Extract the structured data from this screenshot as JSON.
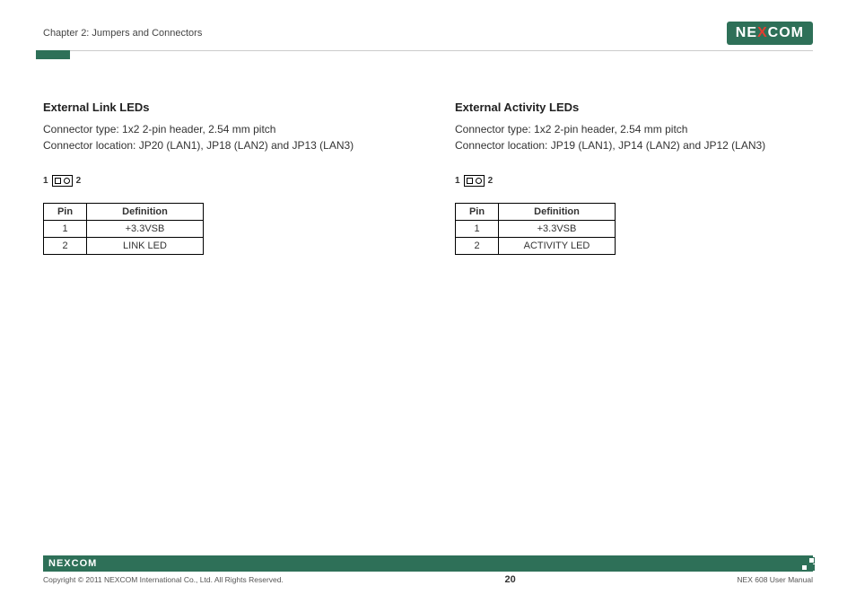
{
  "header": {
    "chapter": "Chapter 2: Jumpers and Connectors",
    "logo_main": "NE",
    "logo_x": "X",
    "logo_end": "COM"
  },
  "sections": [
    {
      "title": "External Link LEDs",
      "connector_type": "Connector type: 1x2 2-pin header, 2.54 mm pitch",
      "connector_location": "Connector location: JP20 (LAN1), JP18 (LAN2) and JP13 (LAN3)",
      "diagram_left": "1",
      "diagram_right": "2",
      "table": {
        "header_pin": "Pin",
        "header_def": "Definition",
        "rows": [
          {
            "pin": "1",
            "def": "+3.3VSB"
          },
          {
            "pin": "2",
            "def": "LINK LED"
          }
        ]
      }
    },
    {
      "title": "External Activity LEDs",
      "connector_type": "Connector type: 1x2 2-pin header, 2.54 mm pitch",
      "connector_location": "Connector location: JP19 (LAN1), JP14 (LAN2) and JP12 (LAN3)",
      "diagram_left": "1",
      "diagram_right": "2",
      "table": {
        "header_pin": "Pin",
        "header_def": "Definition",
        "rows": [
          {
            "pin": "1",
            "def": "+3.3VSB"
          },
          {
            "pin": "2",
            "def": "ACTIVITY LED"
          }
        ]
      }
    }
  ],
  "footer": {
    "logo_main": "NE",
    "logo_x": "X",
    "logo_end": "COM",
    "copyright": "Copyright © 2011 NEXCOM International Co., Ltd. All Rights Reserved.",
    "page_number": "20",
    "doc_ref": "NEX 608 User Manual"
  },
  "colors": {
    "brand_green": "#2e7058",
    "brand_red": "#e43d30",
    "text": "#333333",
    "border": "#000000"
  }
}
